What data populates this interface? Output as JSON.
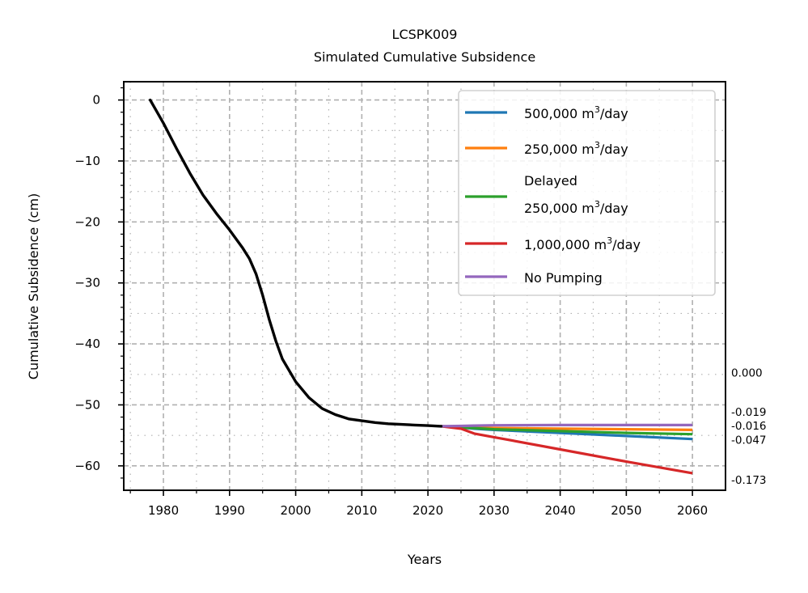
{
  "chart_data": {
    "type": "line",
    "title": "LCSPK009",
    "subtitle": "Simulated Cumulative Subsidence",
    "xlabel": "Years",
    "ylabel": "Cumulative Subsidence (cm)",
    "xlim": [
      1974,
      2065
    ],
    "ylim": [
      -64,
      3
    ],
    "xticks": [
      1980,
      1990,
      2000,
      2010,
      2020,
      2030,
      2040,
      2050,
      2060
    ],
    "yticks": [
      0,
      -10,
      -20,
      -30,
      -40,
      -50,
      -60
    ],
    "ytick_labels": [
      "0",
      "−10",
      "−20",
      "−30",
      "−40",
      "−50",
      "−60"
    ],
    "grid": true,
    "legend_position": "top-right",
    "historical": {
      "color": "#000000",
      "x": [
        1978,
        1980,
        1982,
        1984,
        1986,
        1988,
        1990,
        1992,
        1993,
        1994,
        1995,
        1996,
        1997,
        1998,
        2000,
        2002,
        2004,
        2006,
        2008,
        2010,
        2012,
        2014,
        2016,
        2018,
        2020,
        2022
      ],
      "y": [
        0,
        -3.8,
        -8,
        -12,
        -15.6,
        -18.6,
        -21.3,
        -24.3,
        -26,
        -28.5,
        -32,
        -36,
        -39.5,
        -42.5,
        -46.2,
        -48.8,
        -50.6,
        -51.6,
        -52.3,
        -52.6,
        -52.9,
        -53.1,
        -53.2,
        -53.3,
        -53.4,
        -53.5
      ]
    },
    "x": [
      2022,
      2025,
      2027,
      2030,
      2040,
      2050,
      2060
    ],
    "series": [
      {
        "name": "500,000",
        "color": "#1f77b4",
        "values": [
          -53.5,
          -53.7,
          -53.9,
          -54.1,
          -54.6,
          -55.1,
          -55.6
        ]
      },
      {
        "name": "250,000",
        "color": "#ff7f0e",
        "values": [
          -53.5,
          -53.6,
          -53.7,
          -53.8,
          -53.9,
          -54.0,
          -54.1
        ]
      },
      {
        "name_line1": "Delayed",
        "name": "250,000",
        "color": "#2ca02c",
        "values": [
          -53.5,
          -53.7,
          -53.8,
          -54.0,
          -54.3,
          -54.6,
          -54.8
        ]
      },
      {
        "name": "1,000,000",
        "color": "#d62728",
        "values": [
          -53.5,
          -53.9,
          -54.7,
          -55.3,
          -57.3,
          -59.3,
          -61.2
        ]
      },
      {
        "name": "No Pumping",
        "color": "#9467bd",
        "values": [
          -53.5,
          -53.45,
          -53.4,
          -53.35,
          -53.3,
          -53.3,
          -53.3
        ]
      }
    ],
    "legend_unit": {
      "prefix": "m",
      "sup": "3",
      "suffix": "/day"
    },
    "annotations": [
      {
        "text": "0.000",
        "y": -44.7
      },
      {
        "text": "-0.019",
        "y": -51.1
      },
      {
        "text": "-0.016",
        "y": -53.4
      },
      {
        "text": "-0.047",
        "y": -55.7
      },
      {
        "text": "-0.173",
        "y": -62.3
      }
    ]
  }
}
